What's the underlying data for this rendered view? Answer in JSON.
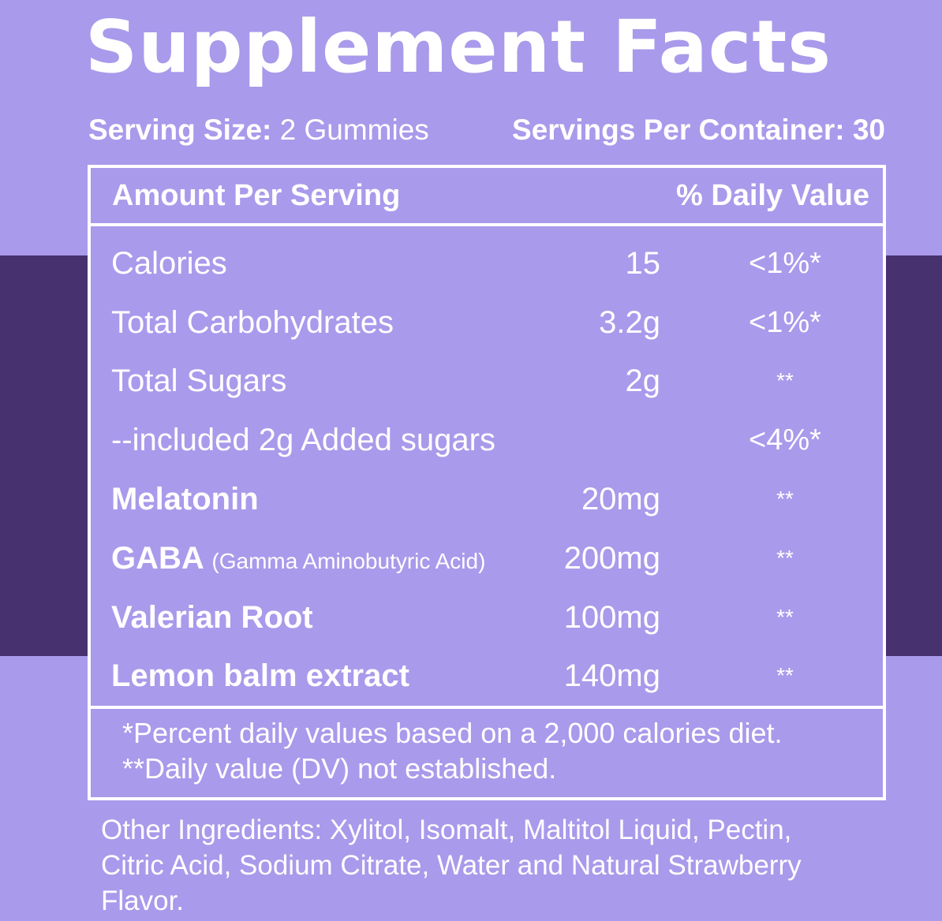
{
  "title": "Supplement Facts",
  "serving": {
    "size_label": "Serving Size:",
    "size_value": "2 Gummies",
    "per_container_label": "Servings Per Container:",
    "per_container_value": "30"
  },
  "table": {
    "header_left": "Amount Per Serving",
    "header_right": "% Daily Value",
    "rows": [
      {
        "name": "Calories",
        "note": "",
        "amount": "15",
        "dv": "<1%*"
      },
      {
        "name": "Total Carbohydrates",
        "note": "",
        "amount": "3.2g",
        "dv": "<1%*"
      },
      {
        "name": "Total Sugars",
        "note": "",
        "amount": "2g",
        "dv": "**"
      },
      {
        "name": "--included 2g Added sugars",
        "note": "",
        "amount": "",
        "dv": "<4%*"
      },
      {
        "name": "Melatonin",
        "note": "",
        "amount": "20mg",
        "dv": "**"
      },
      {
        "name": "GABA",
        "note": "(Gamma Aminobutyric Acid)",
        "amount": "200mg",
        "dv": "**"
      },
      {
        "name": "Valerian Root",
        "note": "",
        "amount": "100mg",
        "dv": "**"
      },
      {
        "name": "Lemon balm extract",
        "note": "",
        "amount": "140mg",
        "dv": "**"
      }
    ],
    "footnote_1": "*Percent daily values based on a 2,000 calories diet.",
    "footnote_2": "**Daily value (DV) not established."
  },
  "other_ingredients": {
    "line_1": "Other Ingredients: Xylitol, Isomalt, Maltitol Liquid, Pectin,",
    "line_2": "Citric Acid, Sodium Citrate, Water and Natural Strawberry",
    "line_3": "Flavor."
  },
  "colors": {
    "background": "#A99AEB",
    "band": "#47316E",
    "text": "#FFFFFF"
  }
}
